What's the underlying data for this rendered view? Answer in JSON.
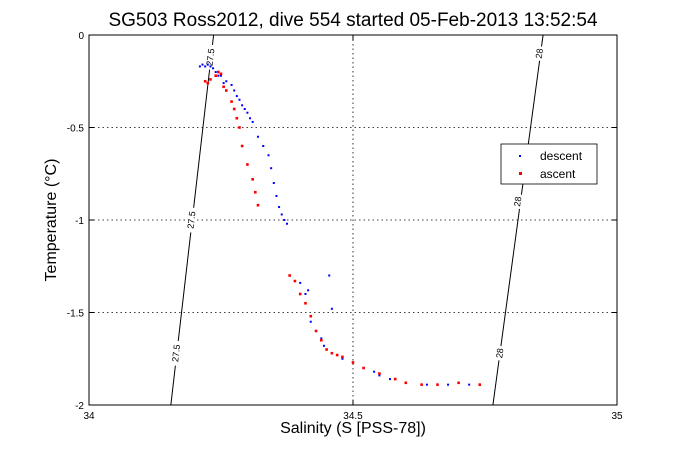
{
  "chart_data": {
    "type": "scatter",
    "title": "SG503 Ross2012, dive 554 started 05-Feb-2013 13:52:54",
    "xlabel": "Salinity (S [PSS-78])",
    "ylabel": "Temperature (°C)",
    "xlim": [
      34,
      35
    ],
    "ylim": [
      -2,
      0
    ],
    "x_ticks": [
      34,
      34.5,
      35
    ],
    "x_tick_labels": [
      "34",
      "34.5",
      "35"
    ],
    "y_ticks": [
      0,
      -0.5,
      -1,
      -1.5,
      -2
    ],
    "y_tick_labels": [
      "0",
      "-0.5",
      "-1",
      "-1.5",
      "-2"
    ],
    "grid": true,
    "legend": {
      "position": "right",
      "entries": [
        "descent",
        "ascent"
      ]
    },
    "contours": [
      {
        "label": "27.5",
        "points": [
          [
            34.236,
            0
          ],
          [
            34.155,
            -2
          ]
        ]
      },
      {
        "label": "28",
        "points": [
          [
            34.86,
            0
          ],
          [
            34.765,
            -2
          ]
        ]
      }
    ],
    "contour_labels": [
      {
        "text": "27.5",
        "x": 34.23,
        "y": -0.12
      },
      {
        "text": "27.5",
        "x": 34.194,
        "y": -1.0
      },
      {
        "text": "27.5",
        "x": 34.165,
        "y": -1.72
      },
      {
        "text": "28",
        "x": 34.853,
        "y": -0.1
      },
      {
        "text": "28",
        "x": 34.812,
        "y": -0.9
      },
      {
        "text": "28",
        "x": 34.778,
        "y": -1.72
      }
    ],
    "series": [
      {
        "name": "descent",
        "color": "#0000ff",
        "points": [
          [
            34.21,
            -0.17
          ],
          [
            34.215,
            -0.16
          ],
          [
            34.22,
            -0.17
          ],
          [
            34.225,
            -0.16
          ],
          [
            34.23,
            -0.17
          ],
          [
            34.235,
            -0.18
          ],
          [
            34.24,
            -0.2
          ],
          [
            34.245,
            -0.22
          ],
          [
            34.25,
            -0.22
          ],
          [
            34.255,
            -0.26
          ],
          [
            34.26,
            -0.25
          ],
          [
            34.27,
            -0.27
          ],
          [
            34.275,
            -0.3
          ],
          [
            34.28,
            -0.33
          ],
          [
            34.285,
            -0.35
          ],
          [
            34.29,
            -0.38
          ],
          [
            34.295,
            -0.4
          ],
          [
            34.3,
            -0.42
          ],
          [
            34.305,
            -0.45
          ],
          [
            34.31,
            -0.47
          ],
          [
            34.32,
            -0.55
          ],
          [
            34.33,
            -0.6
          ],
          [
            34.34,
            -0.65
          ],
          [
            34.345,
            -0.72
          ],
          [
            34.35,
            -0.8
          ],
          [
            34.355,
            -0.87
          ],
          [
            34.36,
            -0.93
          ],
          [
            34.365,
            -0.97
          ],
          [
            34.37,
            -1.0
          ],
          [
            34.375,
            -1.02
          ],
          [
            34.4,
            -1.34
          ],
          [
            34.41,
            -1.4
          ],
          [
            34.415,
            -1.38
          ],
          [
            34.42,
            -1.55
          ],
          [
            34.43,
            -1.6
          ],
          [
            34.44,
            -1.64
          ],
          [
            34.445,
            -1.68
          ],
          [
            34.45,
            -1.7
          ],
          [
            34.455,
            -1.3
          ],
          [
            34.46,
            -1.48
          ],
          [
            34.47,
            -1.73
          ],
          [
            34.48,
            -1.75
          ],
          [
            34.5,
            -1.77
          ],
          [
            34.52,
            -1.8
          ],
          [
            34.54,
            -1.82
          ],
          [
            34.55,
            -1.84
          ],
          [
            34.57,
            -1.86
          ],
          [
            34.6,
            -1.88
          ],
          [
            34.64,
            -1.89
          ],
          [
            34.68,
            -1.89
          ],
          [
            34.72,
            -1.89
          ]
        ]
      },
      {
        "name": "ascent",
        "color": "#ff0000",
        "points": [
          [
            34.22,
            -0.25
          ],
          [
            34.225,
            -0.26
          ],
          [
            34.23,
            -0.24
          ],
          [
            34.24,
            -0.22
          ],
          [
            34.245,
            -0.2
          ],
          [
            34.25,
            -0.21
          ],
          [
            34.255,
            -0.28
          ],
          [
            34.26,
            -0.3
          ],
          [
            34.27,
            -0.36
          ],
          [
            34.275,
            -0.4
          ],
          [
            34.28,
            -0.45
          ],
          [
            34.285,
            -0.5
          ],
          [
            34.29,
            -0.6
          ],
          [
            34.3,
            -0.7
          ],
          [
            34.31,
            -0.78
          ],
          [
            34.315,
            -0.85
          ],
          [
            34.32,
            -0.92
          ],
          [
            34.38,
            -1.3
          ],
          [
            34.39,
            -1.33
          ],
          [
            34.4,
            -1.4
          ],
          [
            34.41,
            -1.45
          ],
          [
            34.42,
            -1.52
          ],
          [
            34.43,
            -1.6
          ],
          [
            34.44,
            -1.65
          ],
          [
            34.45,
            -1.7
          ],
          [
            34.46,
            -1.72
          ],
          [
            34.47,
            -1.73
          ],
          [
            34.48,
            -1.74
          ],
          [
            34.5,
            -1.77
          ],
          [
            34.52,
            -1.8
          ],
          [
            34.55,
            -1.83
          ],
          [
            34.58,
            -1.86
          ],
          [
            34.6,
            -1.88
          ],
          [
            34.63,
            -1.89
          ],
          [
            34.66,
            -1.89
          ],
          [
            34.7,
            -1.88
          ],
          [
            34.74,
            -1.89
          ]
        ]
      }
    ]
  }
}
